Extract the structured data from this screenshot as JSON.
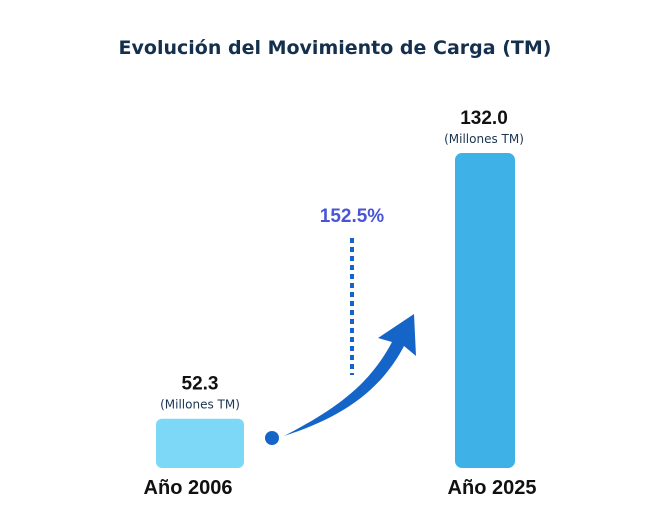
{
  "chart_data": {
    "type": "bar",
    "title": "Evolución del Movimiento de Carga (TM)",
    "categories": [
      "Año 2006",
      "Año 2025"
    ],
    "values": [
      52.3,
      132.0
    ],
    "value_labels": [
      "52.3",
      "132.0"
    ],
    "unit_label": "(Millones TM)",
    "annotation": "152.5%",
    "xlabel": "",
    "ylabel": "",
    "ylim": [
      0,
      132.0
    ],
    "grid": false,
    "colors": [
      "#7dd8f7",
      "#3eb1e6"
    ],
    "arrow_color": "#1565c8",
    "annotation_color": "#4a55d6"
  }
}
